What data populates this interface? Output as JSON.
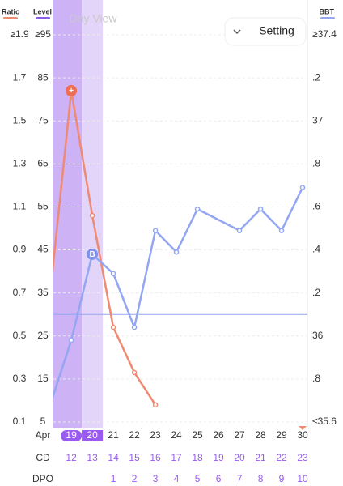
{
  "chart_data": {
    "type": "line",
    "title": "Day View",
    "button": "Setting",
    "month": "Apr",
    "xlim": [
      18.15,
      30.23
    ],
    "xticks": [
      19,
      20,
      21,
      22,
      23,
      24,
      25,
      26,
      27,
      28,
      29,
      30
    ],
    "highlight": [
      19,
      20
    ],
    "today": 30,
    "rows": [
      {
        "name": "CD",
        "values": [
          12,
          13,
          14,
          15,
          16,
          17,
          18,
          19,
          20,
          21,
          22,
          23
        ]
      },
      {
        "name": "DPO",
        "values": [
          null,
          null,
          1,
          2,
          3,
          4,
          5,
          6,
          7,
          8,
          9,
          10
        ]
      }
    ],
    "ylim": [
      0.1,
      1.9
    ],
    "yticks": [
      {
        "value": 1.9,
        "label": "≥1.9"
      },
      1.7,
      1.5,
      1.3,
      1.1,
      0.9,
      0.7,
      0.5,
      0.3,
      0.1
    ],
    "level_axis": {
      "name": "Level",
      "color": "#8a5cf0",
      "lim": [
        5,
        95
      ],
      "ticks": [
        {
          "value": 95,
          "label": "≥95"
        },
        85,
        75,
        65,
        55,
        45,
        35,
        25,
        15,
        5
      ]
    },
    "y2lim": [
      35.6,
      37.4
    ],
    "y2ticks": [
      {
        "value": 37.4,
        "label": "≥37.4"
      },
      {
        "value": 37.2,
        "label": ".2"
      },
      37,
      {
        "value": 36.8,
        "label": ".8"
      },
      {
        "value": 36.6,
        "label": ".6"
      },
      {
        "value": 36.4,
        "label": ".4"
      },
      {
        "value": 36.2,
        "label": ".2"
      },
      36,
      {
        "value": 35.8,
        "label": ".8"
      },
      {
        "value": 35.6,
        "label": "≤35.6"
      }
    ],
    "coverline": 36.1,
    "grid": true,
    "series": [
      {
        "name": "Ratio",
        "color": "#ee8a72",
        "axis": "y",
        "x": [
          18,
          19,
          20,
          21,
          22,
          23
        ],
        "values": [
          0.7,
          1.64,
          1.06,
          0.54,
          0.33,
          0.18
        ],
        "point_labels": [
          null,
          "+",
          null,
          null,
          null,
          null
        ]
      },
      {
        "name": "BBT",
        "color": "#92a6f2",
        "axis": "y2",
        "x": [
          18,
          19,
          20,
          21,
          22,
          23,
          24,
          25,
          27,
          28,
          29,
          30
        ],
        "values": [
          35.68,
          35.98,
          36.38,
          36.29,
          36.04,
          36.49,
          36.39,
          36.59,
          36.49,
          36.59,
          36.49,
          36.69
        ],
        "point_labels": [
          null,
          null,
          "B",
          null,
          null,
          null,
          null,
          null,
          null,
          null,
          null,
          null
        ]
      }
    ]
  }
}
